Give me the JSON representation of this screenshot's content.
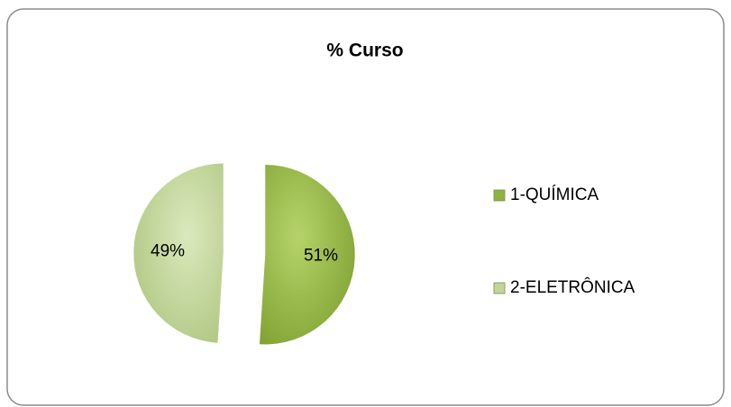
{
  "chart_data": {
    "type": "pie",
    "title": "% Curso",
    "categories": [
      "1-QUÍMICA",
      "2-ELETRÔNICA"
    ],
    "values": [
      51,
      49
    ],
    "value_labels": [
      "51%",
      "49%"
    ],
    "colors": [
      "#8fb33f",
      "#c2d69b"
    ],
    "legend": "right",
    "exploded": true
  }
}
